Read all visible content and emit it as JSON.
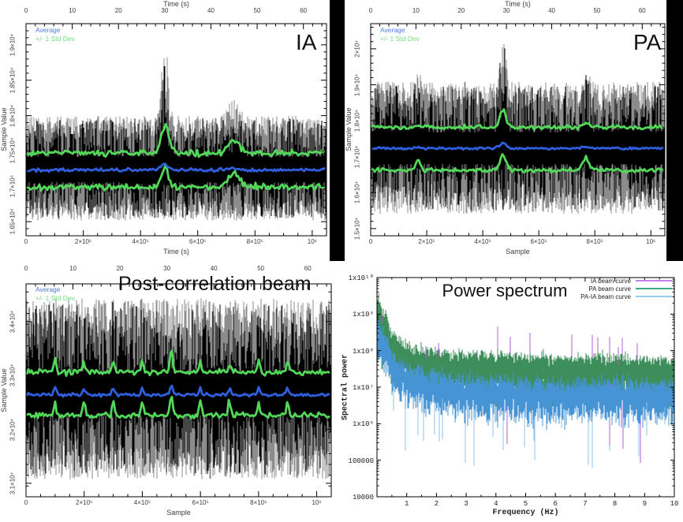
{
  "figure": {
    "background": "#ffffff",
    "divider_color": "#000000"
  },
  "colors": {
    "panel_blue": "#2f5fde",
    "panel_green": "#52d858",
    "legend_blue_text": "#4f7ae8",
    "legend_green_text": "#6ee37c",
    "axis_text": "#3c3c3c",
    "annotation_text": "#111111",
    "noise_black": "#000000",
    "ps_green": "#3e8e5c",
    "ps_blue": "#4794d4",
    "ps_lightblue": "#8cc3ea",
    "ps_purple": "#b05fd6",
    "ps_legend_purple": "#c583ea",
    "ps_legend_green": "#3fae7c",
    "ps_legend_blue": "#96cdf0"
  },
  "chart_data": [
    {
      "id": "ia",
      "type": "line",
      "title": "IA",
      "legend": [
        "Average",
        "+/- 1 Std Dev"
      ],
      "top_axis": {
        "label": "Time (s)",
        "tick_labels": [
          "0",
          "10",
          "20",
          "30",
          "40",
          "50",
          "60"
        ],
        "tick_values": [
          0,
          10,
          20,
          30,
          40,
          50,
          60
        ],
        "range": [
          0,
          65
        ]
      },
      "bottom_axis": {
        "label": "Time (s)",
        "tick_labels": [
          "0",
          "2×10⁵",
          "4×10⁵",
          "6×10⁵",
          "8×10⁵",
          "10⁶"
        ],
        "tick_values": [
          0,
          200000,
          400000,
          600000,
          800000,
          1000000
        ],
        "range": [
          0,
          1050000
        ]
      },
      "y_axis": {
        "label": "Sample Value",
        "tick_labels": [
          "1.65×10⁴",
          "1.7×10⁴",
          "1.75×10⁴",
          "1.8×10⁴",
          "1.85×10⁴",
          "1.9×10⁴"
        ],
        "tick_values": [
          16500,
          17000,
          17500,
          18000,
          18500,
          19000
        ],
        "range": [
          16300,
          19300
        ]
      },
      "series": {
        "average": {
          "mean": 17230,
          "jitter": 25
        },
        "std_upper": {
          "mean": 17470,
          "jitter": 45
        },
        "std_lower": {
          "mean": 16990,
          "jitter": 45
        },
        "raw": {
          "min": 16550,
          "max": 17960
        }
      },
      "spikes": [
        {
          "fx": 0.462,
          "width": 0.012,
          "raw_peak": 19050,
          "std_peak": 17930,
          "avg_peak": 17320
        },
        {
          "fx": 0.692,
          "width": 0.018,
          "raw_peak": 18350,
          "std_peak": 17680,
          "avg_peak": 17260
        }
      ],
      "seed": 101
    },
    {
      "id": "pa",
      "type": "line",
      "title": "PA",
      "legend": [
        "Average",
        "+/- 1 Std Dev"
      ],
      "top_axis": {
        "label": "Time (s)",
        "tick_labels": [
          "0",
          "10",
          "20",
          "30",
          "40",
          "50",
          "60"
        ],
        "tick_values": [
          0,
          10,
          20,
          30,
          40,
          50,
          60
        ],
        "range": [
          0,
          65
        ]
      },
      "bottom_axis": {
        "label": "Sample",
        "tick_labels": [
          "0",
          "2×10⁵",
          "4×10⁵",
          "6×10⁵",
          "8×10⁵",
          "10⁶"
        ],
        "tick_values": [
          0,
          200000,
          400000,
          600000,
          800000,
          1000000
        ],
        "range": [
          0,
          1050000
        ]
      },
      "y_axis": {
        "label": "Sample Value",
        "tick_labels": [
          "1.5×10⁴",
          "1.6×10⁴",
          "1.7×10⁴",
          "1.8×10⁴",
          "1.9×10⁴",
          "2×10⁴"
        ],
        "tick_values": [
          15000,
          16000,
          17000,
          18000,
          19000,
          20000
        ],
        "range": [
          14800,
          20700
        ]
      },
      "series": {
        "average": {
          "mean": 17230,
          "jitter": 35
        },
        "std_upper": {
          "mean": 17820,
          "jitter": 60
        },
        "std_lower": {
          "mean": 16620,
          "jitter": 60
        },
        "raw": {
          "min": 15500,
          "max": 19000
        }
      },
      "spikes": [
        {
          "fx": 0.45,
          "width": 0.01,
          "raw_peak": 20500,
          "std_peak": 18400,
          "avg_peak": 17450
        },
        {
          "fx": 0.73,
          "width": 0.012,
          "raw_peak": 19600,
          "std_peak": 17950,
          "avg_peak": 17300
        },
        {
          "fx": 0.16,
          "width": 0.008,
          "raw_peak": 19500,
          "std_peak": 17860,
          "avg_peak": 17250
        }
      ],
      "seed": 202
    },
    {
      "id": "post",
      "type": "line",
      "title": "Post-correlation beam",
      "legend": [
        "Average",
        "+/- 1 Std Dev"
      ],
      "top_axis": {
        "tick_labels": [
          "0",
          "10",
          "20",
          "30",
          "40",
          "50",
          "60"
        ],
        "tick_values": [
          0,
          10,
          20,
          30,
          40,
          50,
          60
        ],
        "range": [
          0,
          65
        ]
      },
      "bottom_axis": {
        "label": "Sample",
        "tick_labels": [
          "0",
          "2×10⁵",
          "4×10⁵",
          "6×10⁵",
          "8×10⁵",
          "10⁶"
        ],
        "tick_values": [
          0,
          200000,
          400000,
          600000,
          800000,
          1000000
        ],
        "range": [
          0,
          1050000
        ]
      },
      "y_axis": {
        "label": "Sample Value",
        "tick_labels": [
          "3.1×10⁴",
          "3.2×10⁴",
          "3.3×10⁴",
          "3.4×10⁴"
        ],
        "tick_values": [
          31000,
          32000,
          33000,
          34000
        ],
        "range": [
          30750,
          34700
        ]
      },
      "series": {
        "average": {
          "mean": 32640,
          "jitter": 30
        },
        "std_upper": {
          "mean": 33060,
          "jitter": 50
        },
        "std_lower": {
          "mean": 32260,
          "jitter": 50
        },
        "raw": {
          "min": 31150,
          "max": 34340
        }
      },
      "spikes": [
        {
          "fx": 0.095,
          "width": 0.004,
          "raw_peak": 34400,
          "std_peak": 33340,
          "avg_peak": 32800
        },
        {
          "fx": 0.19,
          "width": 0.004,
          "raw_peak": 34380,
          "std_peak": 33300,
          "avg_peak": 32780
        },
        {
          "fx": 0.286,
          "width": 0.004,
          "raw_peak": 34380,
          "std_peak": 33320,
          "avg_peak": 32790
        },
        {
          "fx": 0.381,
          "width": 0.004,
          "raw_peak": 34380,
          "std_peak": 33300,
          "avg_peak": 32770
        },
        {
          "fx": 0.476,
          "width": 0.005,
          "raw_peak": 34420,
          "std_peak": 33500,
          "avg_peak": 32860
        },
        {
          "fx": 0.571,
          "width": 0.004,
          "raw_peak": 34380,
          "std_peak": 33330,
          "avg_peak": 32790
        },
        {
          "fx": 0.667,
          "width": 0.004,
          "raw_peak": 34380,
          "std_peak": 33310,
          "avg_peak": 32780
        },
        {
          "fx": 0.762,
          "width": 0.004,
          "raw_peak": 34380,
          "std_peak": 33340,
          "avg_peak": 32800
        },
        {
          "fx": 0.857,
          "width": 0.004,
          "raw_peak": 34380,
          "std_peak": 33300,
          "avg_peak": 32780
        }
      ],
      "seed": 303
    },
    {
      "id": "ps",
      "type": "line",
      "title": "Power spectrum",
      "x_axis": {
        "label": "Frequency (Hz)",
        "tick_labels": [
          "1",
          "2",
          "3",
          "4",
          "5",
          "6",
          "7",
          "8",
          "9",
          "10"
        ],
        "tick_values": [
          1,
          2,
          3,
          4,
          5,
          6,
          7,
          8,
          9,
          10
        ],
        "range": [
          0,
          10
        ]
      },
      "y_axis": {
        "label": "Spectral power",
        "scale": "log",
        "tick_labels": [
          "1x10¹⁰",
          "1x10⁹",
          "1x10⁸",
          "1x10⁷",
          "1x10⁶",
          "100000",
          "10000"
        ],
        "tick_values": [
          10000000000,
          1000000000,
          100000000,
          10000000,
          1000000,
          100000,
          10000
        ],
        "range": [
          10000,
          10000000000
        ]
      },
      "series": [
        {
          "name": "IA beam curve",
          "color_role": "ps_purple",
          "spike_prob": 0.05,
          "spike_above": 0.55,
          "down_prob": 0.012
        },
        {
          "name": "PA beam curve",
          "color_role": "ps_green",
          "model": {
            "base": 7.72,
            "a1": 0.35,
            "tau1": 4,
            "a2": 1.3,
            "tau2": 0.5,
            "noise": 0.18,
            "band": 1.05
          }
        },
        {
          "name": "PA-IA beam curve",
          "color_role": "ps_lightblue",
          "model": {
            "base": 7.08,
            "a1": 0.45,
            "tau1": 3,
            "a2": 1.3,
            "tau2": 0.45,
            "noise": 0.22,
            "band": 0.95
          },
          "downspike_prob": 0.09,
          "downspike_depth": 1.6
        }
      ],
      "seed": 404
    }
  ]
}
